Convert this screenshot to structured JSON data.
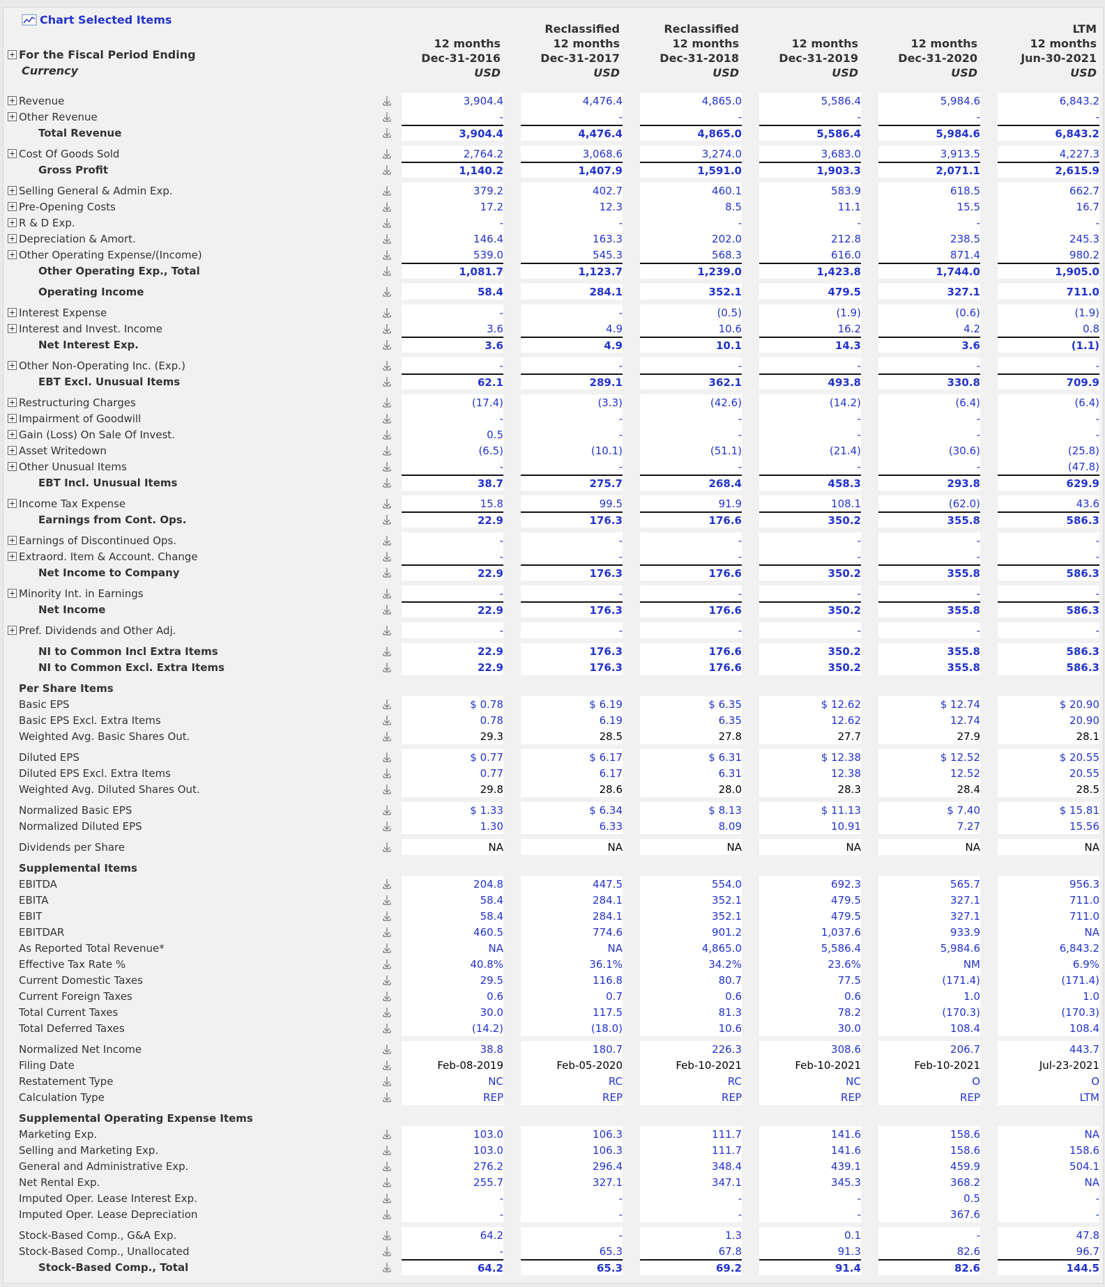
{
  "header": {
    "chart_link": "Chart Selected Items",
    "period_label": "For the Fiscal Period Ending",
    "currency_label": "Currency",
    "columns": [
      {
        "lines": [
          "12 months",
          "Dec-31-2016"
        ],
        "currency": "USD"
      },
      {
        "lines": [
          "Reclassified",
          "12 months",
          "Dec-31-2017"
        ],
        "currency": "USD"
      },
      {
        "lines": [
          "Reclassified",
          "12 months",
          "Dec-31-2018"
        ],
        "currency": "USD"
      },
      {
        "lines": [
          "12 months",
          "Dec-31-2019"
        ],
        "currency": "USD"
      },
      {
        "lines": [
          "12 months",
          "Dec-31-2020"
        ],
        "currency": "USD"
      },
      {
        "lines": [
          "LTM",
          "12 months",
          "Jun-30-2021"
        ],
        "currency": "USD"
      }
    ]
  },
  "value_color": "#2233cc",
  "sections": [
    {
      "rows": [
        {
          "label": "Revenue",
          "expandable": true,
          "values": [
            "3,904.4",
            "4,476.4",
            "4,865.0",
            "5,586.4",
            "5,984.6",
            "6,843.2"
          ]
        },
        {
          "label": "Other Revenue",
          "expandable": true,
          "values": [
            "-",
            "-",
            "-",
            "-",
            "-",
            "-"
          ]
        },
        {
          "label": "Total Revenue",
          "bold": true,
          "rule": true,
          "values": [
            "3,904.4",
            "4,476.4",
            "4,865.0",
            "5,586.4",
            "5,984.6",
            "6,843.2"
          ]
        }
      ]
    },
    {
      "rows": [
        {
          "label": "Cost Of Goods Sold",
          "expandable": true,
          "values": [
            "2,764.2",
            "3,068.6",
            "3,274.0",
            "3,683.0",
            "3,913.5",
            "4,227.3"
          ]
        },
        {
          "label": "Gross Profit",
          "bold": true,
          "rule": true,
          "values": [
            "1,140.2",
            "1,407.9",
            "1,591.0",
            "1,903.3",
            "2,071.1",
            "2,615.9"
          ]
        }
      ]
    },
    {
      "rows": [
        {
          "label": "Selling General & Admin Exp.",
          "expandable": true,
          "values": [
            "379.2",
            "402.7",
            "460.1",
            "583.9",
            "618.5",
            "662.7"
          ]
        },
        {
          "label": "Pre-Opening Costs",
          "expandable": true,
          "values": [
            "17.2",
            "12.3",
            "8.5",
            "11.1",
            "15.5",
            "16.7"
          ]
        },
        {
          "label": "R & D Exp.",
          "expandable": true,
          "values": [
            "-",
            "-",
            "-",
            "-",
            "-",
            "-"
          ]
        },
        {
          "label": "Depreciation & Amort.",
          "expandable": true,
          "values": [
            "146.4",
            "163.3",
            "202.0",
            "212.8",
            "238.5",
            "245.3"
          ]
        },
        {
          "label": "Other Operating Expense/(Income)",
          "expandable": true,
          "values": [
            "539.0",
            "545.3",
            "568.3",
            "616.0",
            "871.4",
            "980.2"
          ]
        },
        {
          "label": "Other Operating Exp., Total",
          "bold": true,
          "rule": true,
          "values": [
            "1,081.7",
            "1,123.7",
            "1,239.0",
            "1,423.8",
            "1,744.0",
            "1,905.0"
          ]
        }
      ]
    },
    {
      "rows": [
        {
          "label": "Operating Income",
          "bold": true,
          "values": [
            "58.4",
            "284.1",
            "352.1",
            "479.5",
            "327.1",
            "711.0"
          ]
        }
      ]
    },
    {
      "rows": [
        {
          "label": "Interest Expense",
          "expandable": true,
          "values": [
            "-",
            "-",
            "(0.5)",
            "(1.9)",
            "(0.6)",
            "(1.9)"
          ]
        },
        {
          "label": "Interest and Invest. Income",
          "expandable": true,
          "values": [
            "3.6",
            "4.9",
            "10.6",
            "16.2",
            "4.2",
            "0.8"
          ]
        },
        {
          "label": "Net Interest Exp.",
          "bold": true,
          "rule": true,
          "values": [
            "3.6",
            "4.9",
            "10.1",
            "14.3",
            "3.6",
            "(1.1)"
          ]
        }
      ]
    },
    {
      "rows": [
        {
          "label": "Other Non-Operating Inc. (Exp.)",
          "expandable": true,
          "values": [
            "-",
            "-",
            "-",
            "-",
            "-",
            "-"
          ]
        },
        {
          "label": "EBT Excl. Unusual Items",
          "bold": true,
          "rule": true,
          "values": [
            "62.1",
            "289.1",
            "362.1",
            "493.8",
            "330.8",
            "709.9"
          ]
        }
      ]
    },
    {
      "rows": [
        {
          "label": "Restructuring Charges",
          "expandable": true,
          "values": [
            "(17.4)",
            "(3.3)",
            "(42.6)",
            "(14.2)",
            "(6.4)",
            "(6.4)"
          ]
        },
        {
          "label": "Impairment of Goodwill",
          "expandable": true,
          "values": [
            "-",
            "-",
            "-",
            "-",
            "-",
            "-"
          ]
        },
        {
          "label": "Gain (Loss) On Sale Of Invest.",
          "expandable": true,
          "values": [
            "0.5",
            "-",
            "-",
            "-",
            "-",
            "-"
          ]
        },
        {
          "label": "Asset Writedown",
          "expandable": true,
          "values": [
            "(6.5)",
            "(10.1)",
            "(51.1)",
            "(21.4)",
            "(30.6)",
            "(25.8)"
          ]
        },
        {
          "label": "Other Unusual Items",
          "expandable": true,
          "values": [
            "-",
            "-",
            "-",
            "-",
            "-",
            "(47.8)"
          ]
        },
        {
          "label": "EBT Incl. Unusual Items",
          "bold": true,
          "rule": true,
          "values": [
            "38.7",
            "275.7",
            "268.4",
            "458.3",
            "293.8",
            "629.9"
          ]
        }
      ]
    },
    {
      "rows": [
        {
          "label": "Income Tax Expense",
          "expandable": true,
          "values": [
            "15.8",
            "99.5",
            "91.9",
            "108.1",
            "(62.0)",
            "43.6"
          ]
        },
        {
          "label": "Earnings from Cont. Ops.",
          "bold": true,
          "rule": true,
          "values": [
            "22.9",
            "176.3",
            "176.6",
            "350.2",
            "355.8",
            "586.3"
          ]
        }
      ]
    },
    {
      "rows": [
        {
          "label": "Earnings of Discontinued Ops.",
          "expandable": true,
          "values": [
            "-",
            "-",
            "-",
            "-",
            "-",
            "-"
          ]
        },
        {
          "label": "Extraord. Item & Account. Change",
          "expandable": true,
          "values": [
            "-",
            "-",
            "-",
            "-",
            "-",
            "-"
          ]
        },
        {
          "label": "Net Income to Company",
          "bold": true,
          "rule": true,
          "values": [
            "22.9",
            "176.3",
            "176.6",
            "350.2",
            "355.8",
            "586.3"
          ]
        }
      ]
    },
    {
      "rows": [
        {
          "label": "Minority Int. in Earnings",
          "expandable": true,
          "values": [
            "-",
            "-",
            "-",
            "-",
            "-",
            "-"
          ]
        },
        {
          "label": "Net Income",
          "bold": true,
          "rule": true,
          "values": [
            "22.9",
            "176.3",
            "176.6",
            "350.2",
            "355.8",
            "586.3"
          ]
        }
      ]
    },
    {
      "rows": [
        {
          "label": "Pref. Dividends and Other Adj.",
          "expandable": true,
          "values": [
            "-",
            "-",
            "-",
            "-",
            "-",
            "-"
          ]
        }
      ]
    },
    {
      "rows": [
        {
          "label": "NI to Common Incl Extra Items",
          "bold": true,
          "values": [
            "22.9",
            "176.3",
            "176.6",
            "350.2",
            "355.8",
            "586.3"
          ]
        },
        {
          "label": "NI to Common Excl. Extra Items",
          "bold": true,
          "values": [
            "22.9",
            "176.3",
            "176.6",
            "350.2",
            "355.8",
            "586.3"
          ]
        }
      ]
    },
    {
      "rows": [
        {
          "label": "Per Share Items",
          "heading": true
        },
        {
          "label": "Basic EPS",
          "values": [
            "$ 0.78",
            "$ 6.19",
            "$ 6.35",
            "$ 12.62",
            "$ 12.74",
            "$ 20.90"
          ]
        },
        {
          "label": "Basic EPS Excl. Extra Items",
          "values": [
            "0.78",
            "6.19",
            "6.35",
            "12.62",
            "12.74",
            "20.90"
          ]
        },
        {
          "label": "Weighted Avg. Basic Shares Out.",
          "value_color": "#000000",
          "values": [
            "29.3",
            "28.5",
            "27.8",
            "27.7",
            "27.9",
            "28.1"
          ]
        }
      ]
    },
    {
      "rows": [
        {
          "label": "Diluted EPS",
          "values": [
            "$ 0.77",
            "$ 6.17",
            "$ 6.31",
            "$ 12.38",
            "$ 12.52",
            "$ 20.55"
          ]
        },
        {
          "label": "Diluted EPS Excl. Extra Items",
          "values": [
            "0.77",
            "6.17",
            "6.31",
            "12.38",
            "12.52",
            "20.55"
          ]
        },
        {
          "label": "Weighted Avg. Diluted Shares Out.",
          "value_color": "#000000",
          "values": [
            "29.8",
            "28.6",
            "28.0",
            "28.3",
            "28.4",
            "28.5"
          ]
        }
      ]
    },
    {
      "rows": [
        {
          "label": "Normalized Basic EPS",
          "values": [
            "$ 1.33",
            "$ 6.34",
            "$ 8.13",
            "$ 11.13",
            "$ 7.40",
            "$ 15.81"
          ]
        },
        {
          "label": "Normalized Diluted EPS",
          "values": [
            "1.30",
            "6.33",
            "8.09",
            "10.91",
            "7.27",
            "15.56"
          ]
        }
      ]
    },
    {
      "rows": [
        {
          "label": "Dividends per Share",
          "value_color": "#000000",
          "values": [
            "NA",
            "NA",
            "NA",
            "NA",
            "NA",
            "NA"
          ]
        }
      ]
    },
    {
      "rows": [
        {
          "label": "Supplemental Items",
          "heading": true
        },
        {
          "label": "EBITDA",
          "values": [
            "204.8",
            "447.5",
            "554.0",
            "692.3",
            "565.7",
            "956.3"
          ]
        },
        {
          "label": "EBITA",
          "values": [
            "58.4",
            "284.1",
            "352.1",
            "479.5",
            "327.1",
            "711.0"
          ]
        },
        {
          "label": "EBIT",
          "values": [
            "58.4",
            "284.1",
            "352.1",
            "479.5",
            "327.1",
            "711.0"
          ]
        },
        {
          "label": "EBITDAR",
          "values": [
            "460.5",
            "774.6",
            "901.2",
            "1,037.6",
            "933.9",
            "NA"
          ]
        },
        {
          "label": "As Reported Total Revenue*",
          "values": [
            "NA",
            "NA",
            "4,865.0",
            "5,586.4",
            "5,984.6",
            "6,843.2"
          ]
        },
        {
          "label": "Effective Tax Rate %",
          "values": [
            "40.8%",
            "36.1%",
            "34.2%",
            "23.6%",
            "NM",
            "6.9%"
          ]
        },
        {
          "label": "Current Domestic Taxes",
          "values": [
            "29.5",
            "116.8",
            "80.7",
            "77.5",
            "(171.4)",
            "(171.4)"
          ]
        },
        {
          "label": "Current Foreign Taxes",
          "values": [
            "0.6",
            "0.7",
            "0.6",
            "0.6",
            "1.0",
            "1.0"
          ]
        },
        {
          "label": "Total Current Taxes",
          "values": [
            "30.0",
            "117.5",
            "81.3",
            "78.2",
            "(170.3)",
            "(170.3)"
          ]
        },
        {
          "label": "Total Deferred Taxes",
          "values": [
            "(14.2)",
            "(18.0)",
            "10.6",
            "30.0",
            "108.4",
            "108.4"
          ]
        }
      ]
    },
    {
      "rows": [
        {
          "label": "Normalized Net Income",
          "values": [
            "38.8",
            "180.7",
            "226.3",
            "308.6",
            "206.7",
            "443.7"
          ]
        },
        {
          "label": "Filing Date",
          "value_color": "#000000",
          "values": [
            "Feb-08-2019",
            "Feb-05-2020",
            "Feb-10-2021",
            "Feb-10-2021",
            "Feb-10-2021",
            "Jul-23-2021"
          ]
        },
        {
          "label": "Restatement Type",
          "values": [
            "NC",
            "RC",
            "RC",
            "NC",
            "O",
            "O"
          ]
        },
        {
          "label": "Calculation Type",
          "values": [
            "REP",
            "REP",
            "REP",
            "REP",
            "REP",
            "LTM"
          ]
        }
      ]
    },
    {
      "rows": [
        {
          "label": "Supplemental Operating Expense Items",
          "heading": true
        },
        {
          "label": "Marketing Exp.",
          "values": [
            "103.0",
            "106.3",
            "111.7",
            "141.6",
            "158.6",
            "NA"
          ]
        },
        {
          "label": "Selling and Marketing Exp.",
          "values": [
            "103.0",
            "106.3",
            "111.7",
            "141.6",
            "158.6",
            "158.6"
          ]
        },
        {
          "label": "General and Administrative Exp.",
          "values": [
            "276.2",
            "296.4",
            "348.4",
            "439.1",
            "459.9",
            "504.1"
          ]
        },
        {
          "label": "Net Rental Exp.",
          "values": [
            "255.7",
            "327.1",
            "347.1",
            "345.3",
            "368.2",
            "NA"
          ]
        },
        {
          "label": "Imputed Oper. Lease Interest Exp.",
          "values": [
            "-",
            "-",
            "-",
            "-",
            "0.5",
            "-"
          ]
        },
        {
          "label": "Imputed Oper. Lease Depreciation",
          "values": [
            "-",
            "-",
            "-",
            "-",
            "367.6",
            "-"
          ]
        }
      ]
    },
    {
      "rows": [
        {
          "label": "Stock-Based Comp., G&A Exp.",
          "values": [
            "64.2",
            "-",
            "1.3",
            "0.1",
            "-",
            "47.8"
          ]
        },
        {
          "label": "Stock-Based Comp., Unallocated",
          "values": [
            "-",
            "65.3",
            "67.8",
            "91.3",
            "82.6",
            "96.7"
          ]
        },
        {
          "label": "Stock-Based Comp., Total",
          "bold": true,
          "rule": true,
          "values": [
            "64.2",
            "65.3",
            "69.2",
            "91.4",
            "82.6",
            "144.5"
          ]
        }
      ]
    }
  ]
}
